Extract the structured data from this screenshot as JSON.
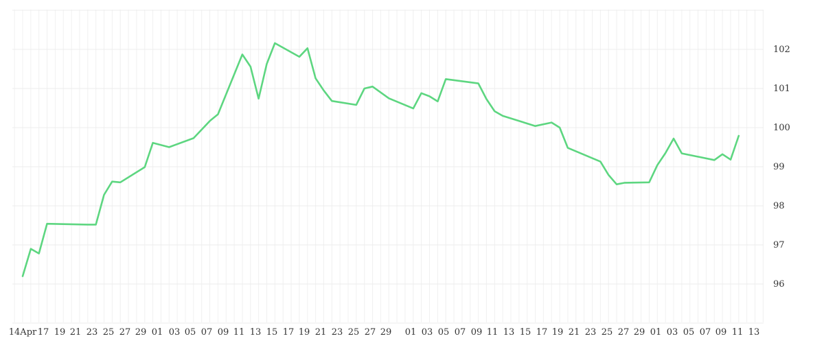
{
  "chart_data": {
    "type": "line",
    "title": "",
    "xlabel": "",
    "ylabel": "",
    "x_tick_labels": [
      "14Apr",
      "17",
      "19",
      "21",
      "23",
      "25",
      "27",
      "29",
      "01",
      "03",
      "05",
      "07",
      "09",
      "11",
      "13",
      "15",
      "17",
      "19",
      "21",
      "23",
      "25",
      "27",
      "29",
      "01",
      "03",
      "05",
      "07",
      "09",
      "11",
      "13",
      "15",
      "17",
      "19",
      "21",
      "23",
      "25",
      "27",
      "29",
      "01",
      "03",
      "05",
      "07",
      "09",
      "11",
      "13"
    ],
    "y_ticks": [
      96,
      97,
      98,
      99,
      100,
      101,
      102
    ],
    "ylim": [
      95.0,
      103.0
    ],
    "grid": true,
    "y_axis_side": "right",
    "series": [
      {
        "color": "#5dd680",
        "values": [
          96.2,
          96.9,
          96.78,
          97.54,
          97.52,
          97.52,
          98.28,
          98.62,
          98.6,
          98.99,
          99.61,
          99.5,
          99.73,
          100.17,
          100.34,
          101.87,
          101.56,
          100.74,
          101.63,
          102.16,
          101.81,
          102.03,
          101.26,
          100.95,
          100.68,
          100.58,
          101.0,
          101.05,
          100.75,
          100.49,
          100.88,
          100.8,
          100.67,
          101.24,
          101.13,
          100.73,
          100.42,
          100.3,
          100.04,
          100.13,
          100.0,
          99.48,
          99.13,
          98.79,
          98.55,
          98.59,
          98.6,
          99.04,
          99.35,
          99.72,
          99.34,
          99.17,
          99.32,
          99.18,
          99.79
        ],
        "x_index": [
          0,
          1,
          2,
          3,
          8,
          9,
          10,
          11,
          12,
          15,
          16,
          18,
          21,
          23,
          24,
          27,
          28,
          29,
          30,
          31,
          34,
          35,
          36,
          37,
          38,
          41,
          42,
          43,
          45,
          48,
          49,
          50,
          51,
          52,
          56,
          57,
          58,
          59,
          63,
          65,
          66,
          67,
          71,
          72,
          73,
          74,
          77,
          78,
          79,
          80,
          81,
          85,
          86,
          87,
          88
        ]
      }
    ]
  }
}
